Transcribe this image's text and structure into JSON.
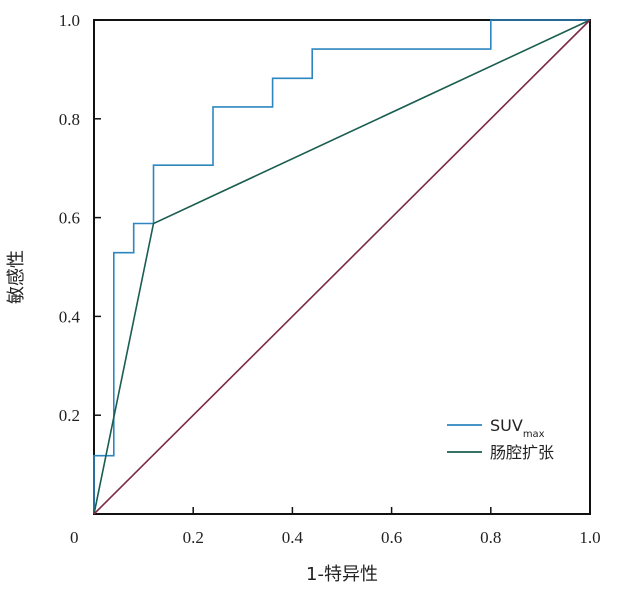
{
  "chart_data": {
    "type": "line",
    "title": "",
    "xlabel": "1-特异性",
    "ylabel": "敏感性",
    "xlim": [
      0,
      1
    ],
    "ylim": [
      0,
      1
    ],
    "xticks": [
      "0.2",
      "0.4",
      "0.6",
      "0.8",
      "1.0"
    ],
    "yticks": [
      "0.2",
      "0.4",
      "0.6",
      "0.8",
      "1.0"
    ],
    "origin_label": "0",
    "grid": false,
    "legend_position": "bottom-right",
    "series": [
      {
        "name": "SUV",
        "name_sub": "max",
        "color": "#2e86c1",
        "step": true,
        "points": [
          [
            0,
            0
          ],
          [
            0,
            0.118
          ],
          [
            0.04,
            0.118
          ],
          [
            0.04,
            0.529
          ],
          [
            0.08,
            0.529
          ],
          [
            0.08,
            0.588
          ],
          [
            0.12,
            0.588
          ],
          [
            0.12,
            0.706
          ],
          [
            0.24,
            0.706
          ],
          [
            0.24,
            0.824
          ],
          [
            0.36,
            0.824
          ],
          [
            0.36,
            0.882
          ],
          [
            0.44,
            0.882
          ],
          [
            0.44,
            0.941
          ],
          [
            0.8,
            0.941
          ],
          [
            0.8,
            1.0
          ],
          [
            1.0,
            1.0
          ]
        ]
      },
      {
        "name": "肠腔扩张",
        "color": "#1a5e50",
        "step": false,
        "points": [
          [
            0,
            0
          ],
          [
            0.12,
            0.588
          ],
          [
            1.0,
            1.0
          ]
        ]
      },
      {
        "name": "reference",
        "color": "#7a2a45",
        "step": false,
        "points": [
          [
            0,
            0
          ],
          [
            1,
            1
          ]
        ]
      }
    ]
  }
}
